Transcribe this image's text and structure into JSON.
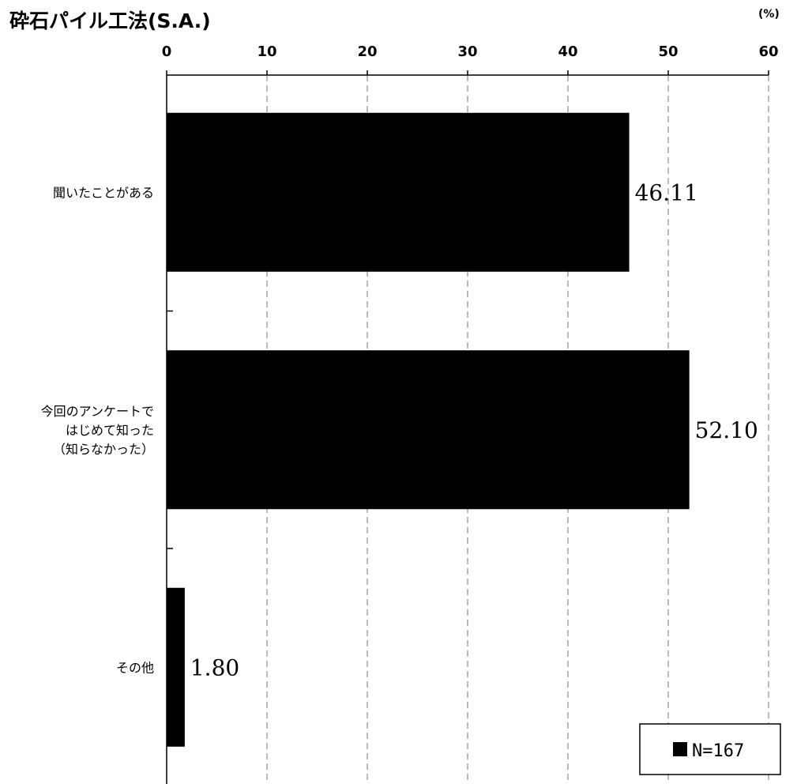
{
  "chart_data": {
    "type": "bar",
    "orientation": "horizontal",
    "title": "砕石パイル工法(S.A.)",
    "unit_label": "(%)",
    "xlim": [
      0,
      60
    ],
    "x_ticks": [
      "0",
      "10",
      "20",
      "30",
      "40",
      "50",
      "60"
    ],
    "grid": "vertical dashed",
    "categories": [
      [
        "聞いたことがある"
      ],
      [
        "今回のアンケートで",
        "はじめて知った",
        "（知らなかった）"
      ],
      [
        "その他"
      ]
    ],
    "values": [
      46.11,
      52.1,
      1.8
    ],
    "value_labels": [
      "46.11",
      "52.10",
      "1.80"
    ],
    "bar_color": "#000000",
    "legend": {
      "label": "N=167",
      "placement": "bottom-right"
    }
  }
}
